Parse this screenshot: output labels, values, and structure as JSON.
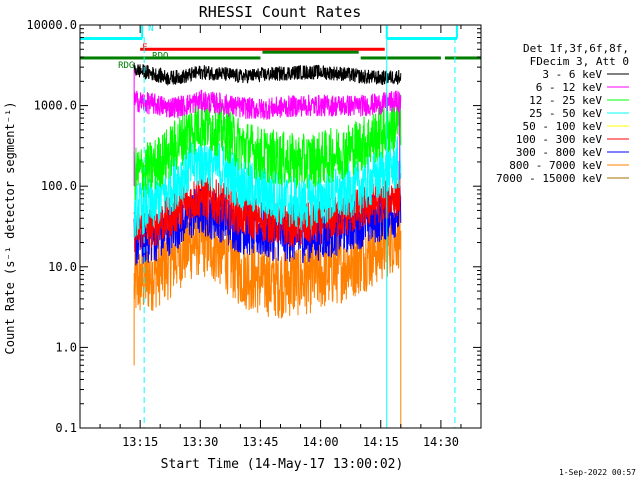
{
  "chart_data": {
    "type": "line",
    "title": "RHESSI Count Rates",
    "xlabel": "Start Time (14-May-17 13:00:02)",
    "ylabel": "Count Rate (s⁻¹ detector segment⁻¹)",
    "yscale": "log",
    "ylim": [
      0.1,
      10000.0
    ],
    "xlim_minutes": [
      0,
      100
    ],
    "x_ticks": [
      {
        "minute": 15,
        "label": "13:15"
      },
      {
        "minute": 30,
        "label": "13:30"
      },
      {
        "minute": 45,
        "label": "13:45"
      },
      {
        "minute": 60,
        "label": "14:00"
      },
      {
        "minute": 75,
        "label": "14:15"
      },
      {
        "minute": 90,
        "label": "14:30"
      }
    ],
    "y_ticks": [
      {
        "value": 0.1,
        "label": "0.1"
      },
      {
        "value": 1.0,
        "label": "1.0"
      },
      {
        "value": 10.0,
        "label": "10.0"
      },
      {
        "value": 100.0,
        "label": "100.0"
      },
      {
        "value": 1000.0,
        "label": "1000.0"
      },
      {
        "value": 10000.0,
        "label": "10000.0"
      }
    ],
    "data_start_minute": 13.5,
    "data_end_minute": 80,
    "legend": {
      "header": [
        "Det 1f,3f,6f,8f,",
        "FDecim 3, Att 0"
      ],
      "entries": [
        {
          "label": "3 - 6 keV",
          "color": "#000000"
        },
        {
          "label": "6 - 12 keV",
          "color": "#ff00ff"
        },
        {
          "label": "12 - 25 keV",
          "color": "#00ff00"
        },
        {
          "label": "25 - 50 keV",
          "color": "#00ffff"
        },
        {
          "label": "50 - 100 keV",
          "color": "#ffff00"
        },
        {
          "label": "100 - 300 keV",
          "color": "#ff0000"
        },
        {
          "label": "300 - 800 keV",
          "color": "#0000ff"
        },
        {
          "label": "800 - 7000 keV",
          "color": "#ff8000"
        },
        {
          "label": "7000 - 15000 keV",
          "color": "#a07000"
        }
      ]
    },
    "series": [
      {
        "name": "3 - 6 keV",
        "color": "#000000",
        "noise": 0.04,
        "x": [
          13.5,
          18,
          22,
          26,
          30,
          35,
          40,
          45,
          50,
          55,
          60,
          65,
          70,
          75,
          80
        ],
        "y": [
          2800,
          2500,
          2200,
          2300,
          2600,
          2500,
          2300,
          2400,
          2500,
          2600,
          2600,
          2500,
          2300,
          2200,
          2300
        ]
      },
      {
        "name": "6 - 12 keV",
        "color": "#ff00ff",
        "noise": 0.06,
        "x": [
          13.5,
          18,
          22,
          26,
          30,
          35,
          40,
          45,
          50,
          55,
          60,
          65,
          70,
          75,
          80
        ],
        "y": [
          1150,
          1050,
          950,
          1000,
          1150,
          1050,
          950,
          900,
          950,
          1000,
          1000,
          1000,
          1000,
          1050,
          1150
        ]
      },
      {
        "name": "12 - 25 keV",
        "color": "#00ff00",
        "noise": 0.15,
        "x": [
          13.5,
          18,
          22,
          26,
          30,
          35,
          40,
          45,
          50,
          55,
          60,
          65,
          70,
          75,
          80
        ],
        "y": [
          140,
          170,
          250,
          420,
          620,
          500,
          330,
          250,
          220,
          200,
          220,
          260,
          330,
          450,
          650
        ]
      },
      {
        "name": "25 - 50 keV",
        "color": "#00ffff",
        "noise": 0.15,
        "x": [
          13.5,
          18,
          22,
          26,
          30,
          35,
          40,
          45,
          50,
          55,
          60,
          65,
          70,
          75,
          80
        ],
        "y": [
          50,
          60,
          90,
          150,
          210,
          170,
          110,
          85,
          70,
          60,
          70,
          80,
          100,
          140,
          200
        ]
      },
      {
        "name": "100 - 300 keV",
        "color": "#ff0000",
        "noise": 0.12,
        "x": [
          13.5,
          18,
          22,
          26,
          30,
          35,
          40,
          45,
          50,
          55,
          60,
          65,
          70,
          75,
          80
        ],
        "y": [
          28,
          32,
          40,
          60,
          75,
          62,
          45,
          38,
          34,
          32,
          36,
          42,
          52,
          65,
          80
        ]
      },
      {
        "name": "300 - 800 keV",
        "color": "#0000ff",
        "noise": 0.14,
        "x": [
          13.5,
          18,
          22,
          26,
          30,
          35,
          40,
          45,
          50,
          55,
          60,
          65,
          70,
          75,
          80
        ],
        "y": [
          20,
          23,
          28,
          40,
          50,
          42,
          30,
          26,
          24,
          23,
          25,
          29,
          35,
          42,
          50
        ]
      },
      {
        "name": "800 - 7000 keV",
        "color": "#ff8000",
        "noise": 0.2,
        "x": [
          13.5,
          18,
          22,
          26,
          30,
          35,
          40,
          45,
          50,
          55,
          60,
          65,
          70,
          75,
          80
        ],
        "y": [
          6,
          8,
          11,
          17,
          22,
          16,
          9,
          7,
          6.5,
          7,
          8,
          10,
          13,
          18,
          28
        ]
      }
    ],
    "flag_bars": [
      {
        "label": "N",
        "color": "#00ffff",
        "y_value": 6800,
        "segments": [
          [
            0,
            15.5
          ],
          [
            76.5,
            94
          ]
        ]
      },
      {
        "label": "F",
        "color": "#ff0000",
        "y_value": 5000,
        "segments": [
          [
            15,
            76
          ]
        ]
      },
      {
        "label": "RDO",
        "color": "#008000",
        "y_value": 4600,
        "segments": [
          [
            45.5,
            69.5
          ]
        ]
      },
      {
        "label": "RDG",
        "color": "#008000",
        "y_value": 3900,
        "segments": [
          [
            0,
            16
          ],
          [
            16,
            45
          ],
          [
            70,
            90
          ],
          [
            91,
            100
          ]
        ]
      }
    ],
    "vertical_markers": [
      {
        "minute": 16,
        "style": "dashed",
        "color": "#00ffff"
      },
      {
        "minute": 76.5,
        "style": "solid",
        "color": "#00ffff"
      },
      {
        "minute": 93.5,
        "style": "dashed",
        "color": "#00ffff"
      },
      {
        "minute": 0,
        "style": "solid",
        "color": "#00ffff"
      }
    ]
  },
  "footer": {
    "timestamp": "1-Sep-2022 00:57"
  }
}
